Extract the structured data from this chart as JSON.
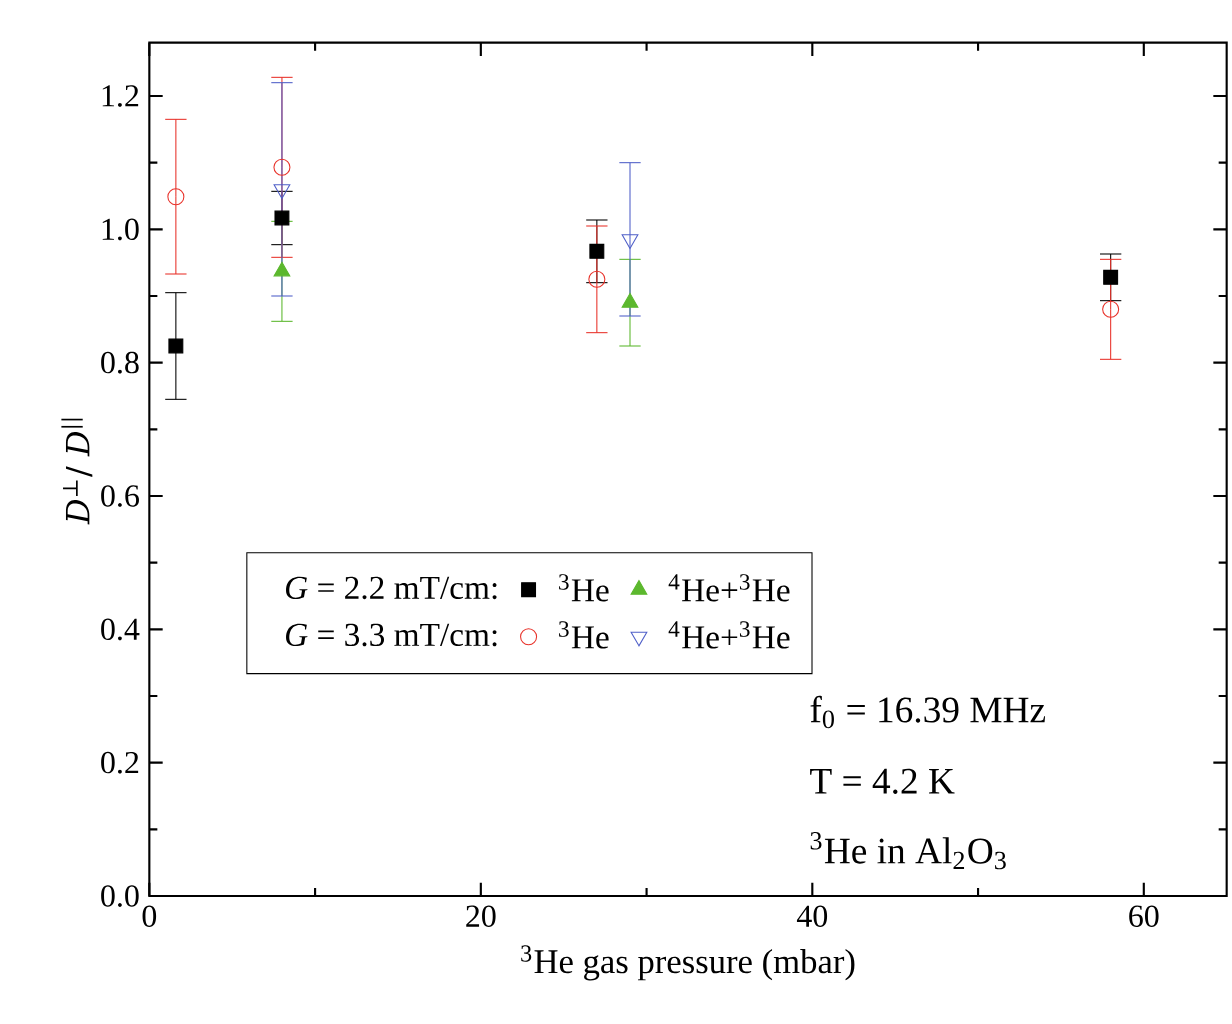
{
  "chart_data": {
    "type": "scatter",
    "xlabel": "$^{3}$He gas pressure (mbar)",
    "ylabel": "*D*$^{⊥}$/ *D*$^{||}$",
    "xlim": [
      0,
      65
    ],
    "ylim": [
      0,
      1.28
    ],
    "xticks": [
      0,
      20,
      40,
      60
    ],
    "yticks": [
      {
        "value": 0,
        "label": "0.0"
      },
      {
        "value": 0.2,
        "label": "0.2"
      },
      {
        "value": 0.4,
        "label": "0.4"
      },
      {
        "value": 0.6,
        "label": "0.6"
      },
      {
        "value": 0.8,
        "label": "0.8"
      },
      {
        "value": 1.0,
        "label": "1.0"
      },
      {
        "value": 1.2,
        "label": "1.2"
      }
    ],
    "legend": "left",
    "annotations": [
      "*G* = 2.2 mT/cm:",
      "*G* = 3.3 mT/cm:",
      "f$_{0}$ = 16.39 MHz",
      "T = 4.2 K",
      "$^{3}$He in Al$_{2}$O$_{3}$"
    ],
    "series": [
      {
        "name": "$^{3}$He",
        "color": "#000000",
        "marker": "square",
        "x": [
          1.6,
          8,
          27,
          58
        ],
        "values": [
          0.825,
          1.017,
          0.967,
          0.928
        ],
        "errors": [
          0.08,
          0.04,
          0.047,
          0.035
        ]
      },
      {
        "name": "$^{4}$He+$^{3}$He",
        "color": "#5cb82e",
        "marker": "triangle",
        "x": [
          8,
          29
        ],
        "values": [
          0.937,
          0.89
        ],
        "errors": [
          0.075,
          0.065
        ]
      },
      {
        "name": "$^{3}$He",
        "color": "#e8322a",
        "marker": "circle",
        "x": [
          1.6,
          8,
          27,
          58
        ],
        "values": [
          1.049,
          1.093,
          0.925,
          0.88
        ],
        "errors": [
          0.116,
          0.135,
          0.08,
          0.075
        ]
      },
      {
        "name": "$^{4}$He+$^{3}$He",
        "color": "#4f5fc8",
        "marker": "triangle-down",
        "x": [
          8,
          29
        ],
        "values": [
          1.06,
          0.985
        ],
        "errors": [
          0.16,
          0.115
        ]
      }
    ]
  }
}
